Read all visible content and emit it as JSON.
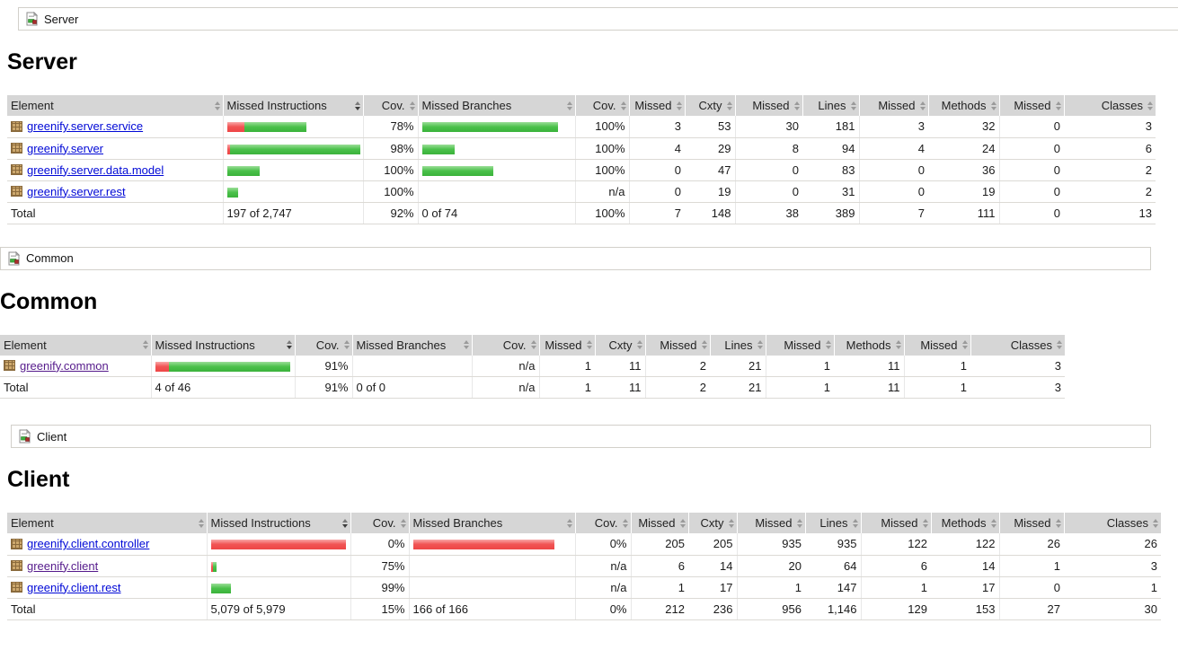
{
  "columns": [
    "Element",
    "Missed Instructions",
    "Cov.",
    "Missed Branches",
    "Cov.",
    "Missed",
    "Cxty",
    "Missed",
    "Lines",
    "Missed",
    "Methods",
    "Missed",
    "Classes"
  ],
  "sort": {
    "column": "Missed Instructions",
    "column_index": 1,
    "direction": "desc"
  },
  "colors": {
    "bar_green": "#4bc14b",
    "bar_red": "#f15454",
    "link": "#0008d6",
    "link_visited": "#551a8b",
    "header_bg": "#d6d6d6"
  },
  "icons": {
    "breadcrumb": "report-icon",
    "element": "package-icon",
    "sortable": "sort-arrows-icon",
    "sorted": "sort-desc-icon"
  },
  "sections": [
    {
      "id": "server",
      "breadcrumb": "Server",
      "title": "Server",
      "rows": [
        {
          "element": "greenify.server.service",
          "visited": false,
          "instructions": {
            "bar": {
              "red": 19,
              "green": 69
            },
            "coverage": "78%"
          },
          "branches": {
            "bar": {
              "red": 0,
              "green": 151
            },
            "coverage": "100%"
          },
          "counters": [
            "3",
            "53",
            "30",
            "181",
            "3",
            "32",
            "0",
            "3"
          ]
        },
        {
          "element": "greenify.server",
          "visited": false,
          "instructions": {
            "bar": {
              "red": 3,
              "green": 145
            },
            "coverage": "98%"
          },
          "branches": {
            "bar": {
              "red": 0,
              "green": 36
            },
            "coverage": "100%"
          },
          "counters": [
            "4",
            "29",
            "8",
            "94",
            "4",
            "24",
            "0",
            "6"
          ]
        },
        {
          "element": "greenify.server.data.model",
          "visited": false,
          "instructions": {
            "bar": {
              "red": 0,
              "green": 36
            },
            "coverage": "100%"
          },
          "branches": {
            "bar": {
              "red": 0,
              "green": 79
            },
            "coverage": "100%"
          },
          "counters": [
            "0",
            "47",
            "0",
            "83",
            "0",
            "36",
            "0",
            "2"
          ]
        },
        {
          "element": "greenify.server.rest",
          "visited": false,
          "instructions": {
            "bar": {
              "red": 0,
              "green": 12
            },
            "coverage": "100%"
          },
          "branches": {
            "bar": null,
            "coverage": "n/a"
          },
          "counters": [
            "0",
            "19",
            "0",
            "31",
            "0",
            "19",
            "0",
            "2"
          ]
        }
      ],
      "total": {
        "label": "Total",
        "instructions": {
          "text": "197 of 2,747",
          "coverage": "92%"
        },
        "branches": {
          "text": "0 of 74",
          "coverage": "100%"
        },
        "counters": [
          "7",
          "148",
          "38",
          "389",
          "7",
          "111",
          "0",
          "13"
        ]
      }
    },
    {
      "id": "common",
      "breadcrumb": "Common",
      "title": "Common",
      "rows": [
        {
          "element": "greenify.common",
          "visited": true,
          "instructions": {
            "bar": {
              "red": 15,
              "green": 135
            },
            "coverage": "91%"
          },
          "branches": {
            "bar": null,
            "coverage": "n/a"
          },
          "counters": [
            "1",
            "11",
            "2",
            "21",
            "1",
            "11",
            "1",
            "3"
          ]
        }
      ],
      "total": {
        "label": "Total",
        "instructions": {
          "text": "4 of 46",
          "coverage": "91%"
        },
        "branches": {
          "text": "0 of 0",
          "coverage": "n/a"
        },
        "counters": [
          "1",
          "11",
          "2",
          "21",
          "1",
          "11",
          "1",
          "3"
        ]
      }
    },
    {
      "id": "client",
      "breadcrumb": "Client",
      "title": "Client",
      "rows": [
        {
          "element": "greenify.client.controller",
          "visited": false,
          "instructions": {
            "bar": {
              "red": 150,
              "green": 0
            },
            "coverage": "0%"
          },
          "branches": {
            "bar": {
              "red": 157,
              "green": 0
            },
            "coverage": "0%"
          },
          "counters": [
            "205",
            "205",
            "935",
            "935",
            "122",
            "122",
            "26",
            "26"
          ]
        },
        {
          "element": "greenify.client",
          "visited": true,
          "instructions": {
            "bar": {
              "red": 2,
              "green": 4
            },
            "coverage": "75%"
          },
          "branches": {
            "bar": null,
            "coverage": "n/a"
          },
          "counters": [
            "6",
            "14",
            "20",
            "64",
            "6",
            "14",
            "1",
            "3"
          ]
        },
        {
          "element": "greenify.client.rest",
          "visited": false,
          "instructions": {
            "bar": {
              "red": 0,
              "green": 22
            },
            "coverage": "99%"
          },
          "branches": {
            "bar": null,
            "coverage": "n/a"
          },
          "counters": [
            "1",
            "17",
            "1",
            "147",
            "1",
            "17",
            "0",
            "1"
          ]
        }
      ],
      "total": {
        "label": "Total",
        "instructions": {
          "text": "5,079 of 5,979",
          "coverage": "15%"
        },
        "branches": {
          "text": "166 of 166",
          "coverage": "0%"
        },
        "counters": [
          "212",
          "236",
          "956",
          "1,146",
          "129",
          "153",
          "27",
          "30"
        ]
      }
    }
  ]
}
